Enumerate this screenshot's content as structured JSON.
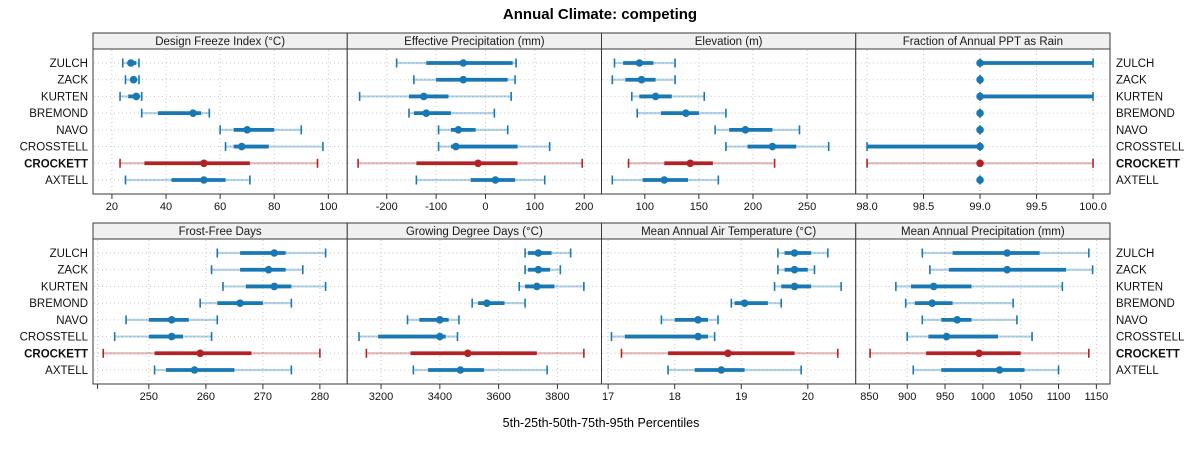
{
  "title": "Annual Climate: competing",
  "axis_title": "5th-25th-50th-75th-95th Percentiles",
  "colors": {
    "site": "#1878b4",
    "site_faint": "rgba(24,120,180,0.32)",
    "highlight": "#b22225",
    "highlight_faint": "rgba(178,34,37,0.30)",
    "grid": "#c6c6c6",
    "panel_border": "#3a3a3a",
    "header_bg": "#f0f0f0",
    "tick": "#333333"
  },
  "chart_data": {
    "type": "trellis-dotplot-percentiles",
    "title": "Annual Climate: competing",
    "xlabel": "5th-25th-50th-75th-95th Percentiles",
    "legend": "none",
    "grid": "dashed",
    "percentile_labels": [
      "5th",
      "25th",
      "50th",
      "75th",
      "95th"
    ],
    "sites": [
      "ZULCH",
      "ZACK",
      "KURTEN",
      "BREMOND",
      "NAVO",
      "CROSSTELL",
      "CROCKETT",
      "AXTELL"
    ],
    "highlight_site": "CROCKETT",
    "panels": [
      {
        "slug": "design-freeze-index",
        "title": "Design Freeze Index (°C)",
        "domain": [
          13,
          107
        ],
        "ticks": [
          20,
          40,
          60,
          80,
          100
        ],
        "tick_labels": [
          "20",
          "40",
          "60",
          "80",
          "100"
        ],
        "values": [
          [
            24,
            26,
            27,
            29,
            30
          ],
          [
            25,
            27,
            28,
            29,
            30
          ],
          [
            23,
            26,
            29,
            30,
            31
          ],
          [
            31,
            37,
            50,
            53,
            56
          ],
          [
            60,
            65,
            70,
            80,
            90
          ],
          [
            62,
            65,
            68,
            78,
            98
          ],
          [
            23,
            32,
            54,
            71,
            96
          ],
          [
            25,
            42,
            54,
            62,
            71
          ]
        ]
      },
      {
        "slug": "effective-precipitation",
        "title": "Effective Precipitation (mm)",
        "domain": [
          -280,
          235
        ],
        "ticks": [
          -200,
          -100,
          0,
          100,
          200
        ],
        "tick_labels": [
          "-200",
          "-100",
          "0",
          "100",
          "200"
        ],
        "values": [
          [
            -180,
            -120,
            -45,
            55,
            62
          ],
          [
            -145,
            -100,
            -45,
            45,
            60
          ],
          [
            -255,
            -155,
            -125,
            -75,
            52
          ],
          [
            -155,
            -145,
            -120,
            -70,
            18
          ],
          [
            -95,
            -70,
            -55,
            -20,
            45
          ],
          [
            -95,
            -70,
            -60,
            65,
            130
          ],
          [
            -258,
            -140,
            -15,
            65,
            196
          ],
          [
            -140,
            -30,
            20,
            60,
            120
          ]
        ]
      },
      {
        "slug": "elevation",
        "title": "Elevation (m)",
        "domain": [
          60,
          295
        ],
        "ticks": [
          100,
          150,
          200,
          250
        ],
        "tick_labels": [
          "100",
          "150",
          "200",
          "250"
        ],
        "values": [
          [
            72,
            80,
            95,
            108,
            128
          ],
          [
            70,
            82,
            97,
            110,
            128
          ],
          [
            88,
            95,
            110,
            125,
            155
          ],
          [
            93,
            115,
            138,
            150,
            175
          ],
          [
            165,
            178,
            193,
            218,
            243
          ],
          [
            175,
            195,
            218,
            240,
            270
          ],
          [
            85,
            118,
            142,
            163,
            220
          ],
          [
            70,
            98,
            118,
            140,
            168
          ]
        ]
      },
      {
        "slug": "fraction-ppt-rain",
        "title": "Fraction of Annual PPT as Rain",
        "domain": [
          97.9,
          100.15
        ],
        "ticks": [
          98.0,
          98.5,
          99.0,
          99.5,
          100.0
        ],
        "tick_labels": [
          "98.0",
          "98.5",
          "99.0",
          "99.5",
          "100.0"
        ],
        "values": [
          [
            99,
            99,
            99,
            100,
            100
          ],
          [
            99,
            99,
            99,
            99,
            99
          ],
          [
            99,
            99,
            99,
            100,
            100
          ],
          [
            99,
            99,
            99,
            99,
            99
          ],
          [
            99,
            99,
            99,
            99,
            99
          ],
          [
            98,
            98,
            99,
            99,
            99
          ],
          [
            98,
            99,
            99,
            99,
            100
          ],
          [
            99,
            99,
            99,
            99,
            99
          ]
        ]
      },
      {
        "slug": "frost-free-days",
        "title": "Frost-Free Days",
        "domain": [
          240.2,
          284.8
        ],
        "ticks": [
          241,
          250,
          260,
          270,
          280
        ],
        "tick_labels": [
          "",
          "250",
          "260",
          "270",
          "280"
        ],
        "values": [
          [
            262,
            266,
            272,
            274,
            281
          ],
          [
            261,
            266,
            271,
            274,
            277
          ],
          [
            263,
            267,
            272,
            275,
            281
          ],
          [
            259,
            262,
            266,
            270,
            275
          ],
          [
            246,
            250,
            254,
            257,
            262
          ],
          [
            244,
            250,
            254,
            256,
            261
          ],
          [
            242,
            251,
            259,
            268,
            280
          ],
          [
            251,
            253,
            258,
            265,
            275
          ]
        ]
      },
      {
        "slug": "growing-degree-days",
        "title": "Growing Degree Days (°C)",
        "domain": [
          3085,
          3950
        ],
        "ticks": [
          3200,
          3400,
          3600,
          3800
        ],
        "tick_labels": [
          "3200",
          "3400",
          "3600",
          "3800"
        ],
        "values": [
          [
            3690,
            3700,
            3735,
            3780,
            3845
          ],
          [
            3690,
            3700,
            3735,
            3775,
            3810
          ],
          [
            3670,
            3690,
            3730,
            3790,
            3890
          ],
          [
            3510,
            3530,
            3560,
            3620,
            3690
          ],
          [
            3290,
            3330,
            3400,
            3430,
            3465
          ],
          [
            3125,
            3190,
            3400,
            3420,
            3460
          ],
          [
            3150,
            3300,
            3495,
            3730,
            3890
          ],
          [
            3310,
            3360,
            3470,
            3550,
            3765
          ]
        ]
      },
      {
        "slug": "mean-annual-air-temperature",
        "title": "Mean Annual Air Temperature (°C)",
        "domain": [
          16.9,
          20.72
        ],
        "ticks": [
          17,
          18,
          19,
          20
        ],
        "tick_labels": [
          "17",
          "18",
          "19",
          "20"
        ],
        "values": [
          [
            19.55,
            19.65,
            19.8,
            20.05,
            20.3
          ],
          [
            19.55,
            19.65,
            19.8,
            20.0,
            20.1
          ],
          [
            19.5,
            19.6,
            19.8,
            20.05,
            20.5
          ],
          [
            18.85,
            18.9,
            19.05,
            19.4,
            19.6
          ],
          [
            17.8,
            18.0,
            18.35,
            18.5,
            18.65
          ],
          [
            17.05,
            17.25,
            18.35,
            18.5,
            18.6
          ],
          [
            17.2,
            17.9,
            18.8,
            19.8,
            20.45
          ],
          [
            17.9,
            18.3,
            18.7,
            19.05,
            19.9
          ]
        ]
      },
      {
        "slug": "mean-annual-precipitation",
        "title": "Mean Annual Precipitation (mm)",
        "domain": [
          832,
          1168
        ],
        "ticks": [
          850,
          900,
          950,
          1000,
          1050,
          1100,
          1150
        ],
        "tick_labels": [
          "850",
          "900",
          "950",
          "1000",
          "1050",
          "1100",
          "1150"
        ],
        "values": [
          [
            920,
            960,
            1032,
            1075,
            1140
          ],
          [
            930,
            955,
            1032,
            1110,
            1145
          ],
          [
            885,
            905,
            935,
            985,
            1105
          ],
          [
            898,
            910,
            933,
            960,
            1040
          ],
          [
            920,
            945,
            966,
            985,
            1045
          ],
          [
            900,
            928,
            952,
            1020,
            1065
          ],
          [
            851,
            925,
            995,
            1050,
            1140
          ],
          [
            908,
            945,
            1022,
            1055,
            1100
          ]
        ]
      }
    ]
  }
}
